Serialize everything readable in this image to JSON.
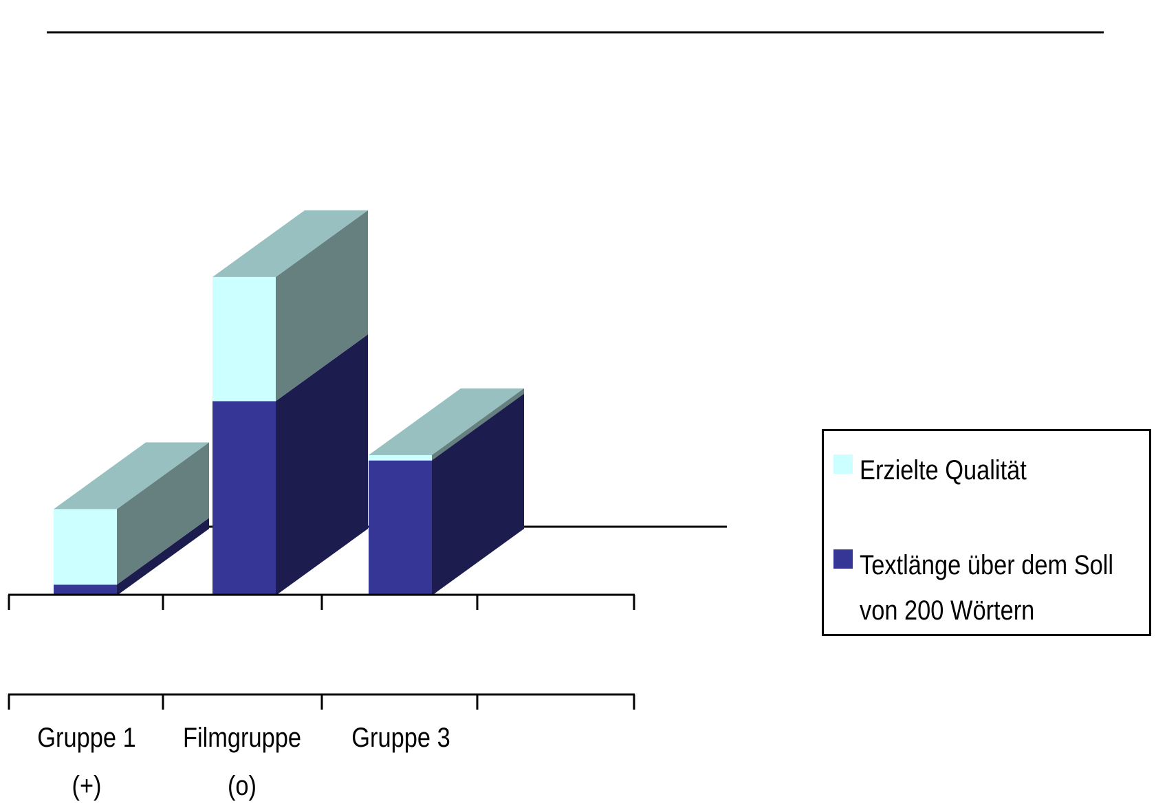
{
  "chart_data": {
    "type": "bar",
    "stacked": true,
    "three_d": true,
    "categories": [
      "Gruppe 1 (+)",
      "Filmgruppe (o)",
      "Gruppe 3",
      ""
    ],
    "category_label_lines": [
      [
        "Gruppe 1",
        "(+)"
      ],
      [
        "Filmgruppe",
        "(o)"
      ],
      [
        "Gruppe 3",
        ""
      ],
      [
        "",
        ""
      ]
    ],
    "series": [
      {
        "name": "Textlänge über dem Soll von 200 Wörtern",
        "values": [
          0.2,
          3.6,
          2.6,
          0
        ],
        "color": "#363696"
      },
      {
        "name": "Erzielte Qualität",
        "values": [
          1.4,
          2.3,
          -0.1,
          0
        ],
        "color": "#ccffff"
      }
    ],
    "ylim": [
      -0.5,
      6.2
    ],
    "reference_lines": [
      {
        "name": "upper-gridline",
        "value": 5.9
      },
      {
        "name": "floor-back-edge",
        "value": 0
      }
    ],
    "grid": false,
    "legend_position": "right",
    "title": "",
    "xlabel": "",
    "ylabel": ""
  },
  "legend": {
    "items": [
      {
        "label": "Erzielte Qualität",
        "color": "#ccffff"
      },
      {
        "label_line1": "Textlänge über dem Soll",
        "label_line2": "von 200 Wörtern",
        "color": "#363696"
      }
    ]
  }
}
